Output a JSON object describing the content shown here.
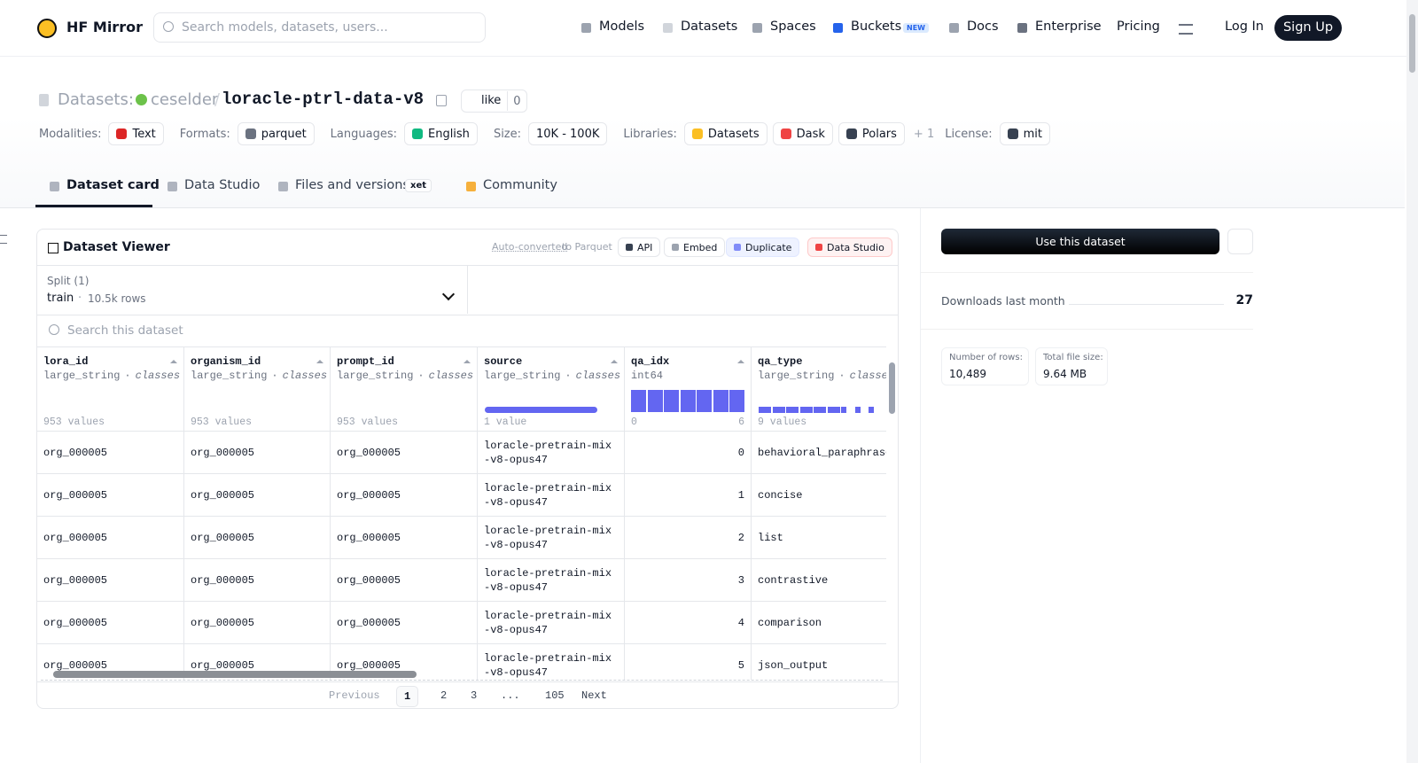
{
  "nav": {
    "brand": "HF Mirror",
    "search_placeholder": "Search models, datasets, users...",
    "links": [
      "Models",
      "Datasets",
      "Spaces",
      "Buckets",
      "Docs",
      "Enterprise",
      "Pricing"
    ],
    "badge": "NEW",
    "login": "Log In",
    "signup": "Sign Up"
  },
  "header": {
    "prefix": "Datasets:",
    "owner": "ceselder",
    "separator": "/",
    "name": "loracle-ptrl-data-v8",
    "like": "like",
    "likes": 0,
    "meta": [
      {
        "label": "Modalities:",
        "items": [
          "Text"
        ]
      },
      {
        "label": "Formats:",
        "items": [
          "parquet"
        ]
      },
      {
        "label": "Languages:",
        "items": [
          "English"
        ]
      },
      {
        "label": "Size:",
        "items": [
          "10K - 100K"
        ]
      },
      {
        "label": "Libraries:",
        "items": [
          "Datasets",
          "Dask",
          "Polars"
        ],
        "more": "+ 1"
      },
      {
        "label": "License:",
        "items": [
          "mit"
        ]
      }
    ]
  },
  "tabs": {
    "items": [
      "Dataset card",
      "Data Studio",
      "Files and versions",
      "Community"
    ],
    "xet": "xet"
  },
  "viewer": {
    "title": "Dataset Viewer",
    "auto_converted": "Auto-converted",
    "to_parquet": "to Parquet",
    "buttons": [
      "API",
      "Embed",
      "Duplicate",
      "Data Studio"
    ],
    "split_label": "Split (1)",
    "split": "train",
    "separator": "·",
    "split_rows": "10.5k rows",
    "search_placeholder": "Search this dataset",
    "columns": [
      {
        "name": "lora_id",
        "type": "large_string",
        "note": "classes",
        "summary": "953 values"
      },
      {
        "name": "organism_id",
        "type": "large_string",
        "note": "classes",
        "summary": "953 values"
      },
      {
        "name": "prompt_id",
        "type": "large_string",
        "note": "classes",
        "summary": "953 values"
      },
      {
        "name": "source",
        "type": "large_string",
        "note": "classes",
        "summary": "1 value"
      },
      {
        "name": "qa_idx",
        "type": "int64",
        "min": 0,
        "max": 6
      },
      {
        "name": "qa_type",
        "type": "large_string",
        "note": "classes",
        "summary": "9 values"
      }
    ],
    "rows": [
      [
        "org_000005",
        "org_000005",
        "org_000005",
        "loracle-pretrain-mix-v8-opus47",
        0,
        "behavioral_paraphrase"
      ],
      [
        "org_000005",
        "org_000005",
        "org_000005",
        "loracle-pretrain-mix-v8-opus47",
        1,
        "concise"
      ],
      [
        "org_000005",
        "org_000005",
        "org_000005",
        "loracle-pretrain-mix-v8-opus47",
        2,
        "list"
      ],
      [
        "org_000005",
        "org_000005",
        "org_000005",
        "loracle-pretrain-mix-v8-opus47",
        3,
        "contrastive"
      ],
      [
        "org_000005",
        "org_000005",
        "org_000005",
        "loracle-pretrain-mix-v8-opus47",
        4,
        "comparison"
      ],
      [
        "org_000005",
        "org_000005",
        "org_000005",
        "loracle-pretrain-mix-v8-opus47",
        5,
        "json_output"
      ]
    ],
    "pagination": {
      "previous": "Previous",
      "pages": [
        "1",
        "2",
        "3",
        "...",
        "105"
      ],
      "next": "Next"
    }
  },
  "sidebar": {
    "use_button": "Use this dataset",
    "downloads_label": "Downloads last month",
    "downloads": 27,
    "rows_label": "Number of rows:",
    "rows_value": "10,489",
    "size_label": "Total file size:",
    "size_value": "9.64 MB"
  }
}
